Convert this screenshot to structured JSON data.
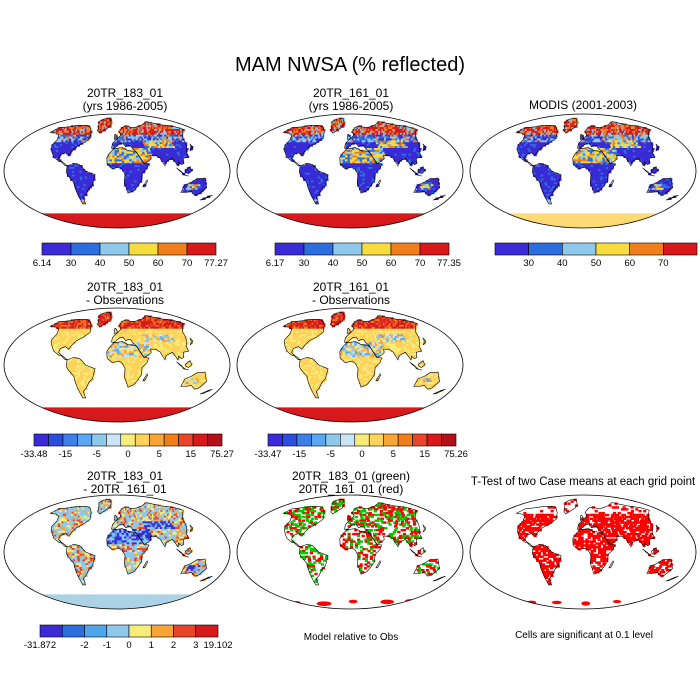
{
  "figure": {
    "title": "MAM NWSA (% reflected)"
  },
  "panels": [
    {
      "id": "p1",
      "title1": "20TR_183_01",
      "title2": "(yrs 1986-2005)",
      "scheme": "abs",
      "antarctic": "full",
      "antarcticColor": "#d7191c"
    },
    {
      "id": "p2",
      "title1": "20TR_161_01",
      "title2": "(yrs 1986-2005)",
      "scheme": "abs",
      "antarctic": "full",
      "antarcticColor": "#d7191c"
    },
    {
      "id": "p3",
      "title1": "MODIS (2001-2003)",
      "title2": "",
      "scheme": "obs",
      "antarctic": "partial",
      "antarcticColor": "#fdd35b"
    },
    {
      "id": "p4",
      "title1": "20TR_183_01",
      "title2": "- Observations",
      "scheme": "diff",
      "antarctic": "full",
      "antarcticColor": "#d7191c"
    },
    {
      "id": "p5",
      "title1": "20TR_161_01",
      "title2": "- Observations",
      "scheme": "diff",
      "antarctic": "full",
      "antarcticColor": "#d7191c"
    },
    {
      "id": "p6",
      "title1": "20TR_183_01",
      "title2": "- 20TR_161_01",
      "scheme": "mdiff",
      "antarctic": "partial",
      "antarcticColor": "#9ecae1"
    },
    {
      "id": "p7",
      "title1": "20TR_183_01 (green)",
      "title2": "20TR_161_01 (red)",
      "scheme": "gr",
      "antarctic": "spots",
      "antarcticColor": "#ff0000"
    },
    {
      "id": "p8",
      "title1": "T-Test of two Case means at each grid point",
      "title2": "",
      "scheme": "sig",
      "antarctic": "spots",
      "antarcticColor": "#ff0000"
    }
  ],
  "colorbars": [
    {
      "id": "cb1",
      "colors": [
        "#3a2bd6",
        "#2c6ee0",
        "#8ec8ea",
        "#f6dc3f",
        "#f07f1b",
        "#d7191c"
      ],
      "labels": [
        "6.14",
        "30",
        "40",
        "50",
        "60",
        "70",
        "77.27"
      ]
    },
    {
      "id": "cb2",
      "colors": [
        "#3a2bd6",
        "#2c6ee0",
        "#8ec8ea",
        "#f6dc3f",
        "#f07f1b",
        "#d7191c"
      ],
      "labels": [
        "6.17",
        "30",
        "40",
        "50",
        "60",
        "70",
        "77.35"
      ]
    },
    {
      "id": "cb3",
      "colors": [
        "#3a2bd6",
        "#2c6ee0",
        "#8ec8ea",
        "#f6dc3f",
        "#f07f1b",
        "#d7191c"
      ],
      "labels": [
        "",
        "30",
        "40",
        "50",
        "60",
        "70",
        ""
      ]
    },
    {
      "id": "cb4",
      "colors": [
        "#3a2bd6",
        "#2c4ee0",
        "#3e7ee8",
        "#5aa6f0",
        "#8ec8ea",
        "#c8e6f5",
        "#f6ec7a",
        "#fdd35b",
        "#f9a436",
        "#f07f1b",
        "#e8452a",
        "#d7191c",
        "#b3101a"
      ],
      "labels": [
        "-33.48",
        "",
        "-15",
        "",
        "-5",
        "",
        "0",
        "",
        "5",
        "",
        "15",
        "",
        "75.27"
      ]
    },
    {
      "id": "cb5",
      "colors": [
        "#3a2bd6",
        "#2c4ee0",
        "#3e7ee8",
        "#5aa6f0",
        "#8ec8ea",
        "#c8e6f5",
        "#f6ec7a",
        "#fdd35b",
        "#f9a436",
        "#f07f1b",
        "#e8452a",
        "#d7191c",
        "#b3101a"
      ],
      "labels": [
        "-33.47",
        "",
        "-15",
        "",
        "-5",
        "",
        "0",
        "",
        "5",
        "",
        "15",
        "",
        "75.26"
      ]
    },
    {
      "id": "cb6",
      "colors": [
        "#3a2bd6",
        "#2c6ee0",
        "#4ea6ea",
        "#8ec8ea",
        "#f6ec7a",
        "#f9a436",
        "#e8452a",
        "#d7191c"
      ],
      "labels": [
        "-31.872",
        "",
        "-2",
        "-1",
        "0",
        "1",
        "2",
        "3",
        "19.102"
      ]
    }
  ],
  "notes": {
    "model_relative": "Model relative to Obs",
    "cells_significant": "Cells are significant at 0.1 level"
  },
  "chart_data": {
    "type": "heatmap",
    "title": "MAM NWSA (% reflected)",
    "variable": "NWSA",
    "season": "MAM",
    "panels": [
      {
        "title": "20TR_183_01 (yrs 1986-2005)",
        "min": 6.14,
        "max": 77.27,
        "levels": [
          30,
          40,
          50,
          60,
          70
        ]
      },
      {
        "title": "20TR_161_01 (yrs 1986-2005)",
        "min": 6.17,
        "max": 77.35,
        "levels": [
          30,
          40,
          50,
          60,
          70
        ]
      },
      {
        "title": "MODIS (2001-2003)",
        "levels": [
          30,
          40,
          50,
          60,
          70
        ]
      },
      {
        "title": "20TR_183_01 - Observations",
        "min": -33.48,
        "max": 75.27,
        "levels": [
          -15,
          -5,
          0,
          5,
          15
        ]
      },
      {
        "title": "20TR_161_01 - Observations",
        "min": -33.47,
        "max": 75.26,
        "levels": [
          -15,
          -5,
          0,
          5,
          15
        ]
      },
      {
        "title": "20TR_183_01 - 20TR_161_01",
        "min": -31.872,
        "max": 19.102,
        "levels": [
          -2,
          -1,
          0,
          1,
          2,
          3
        ]
      },
      {
        "title": "20TR_183_01 (green) 20TR_161_01 (red)",
        "note": "Model relative to Obs"
      },
      {
        "title": "T-Test of two Case means at each grid point",
        "note": "Cells are significant at 0.1 level"
      }
    ]
  }
}
